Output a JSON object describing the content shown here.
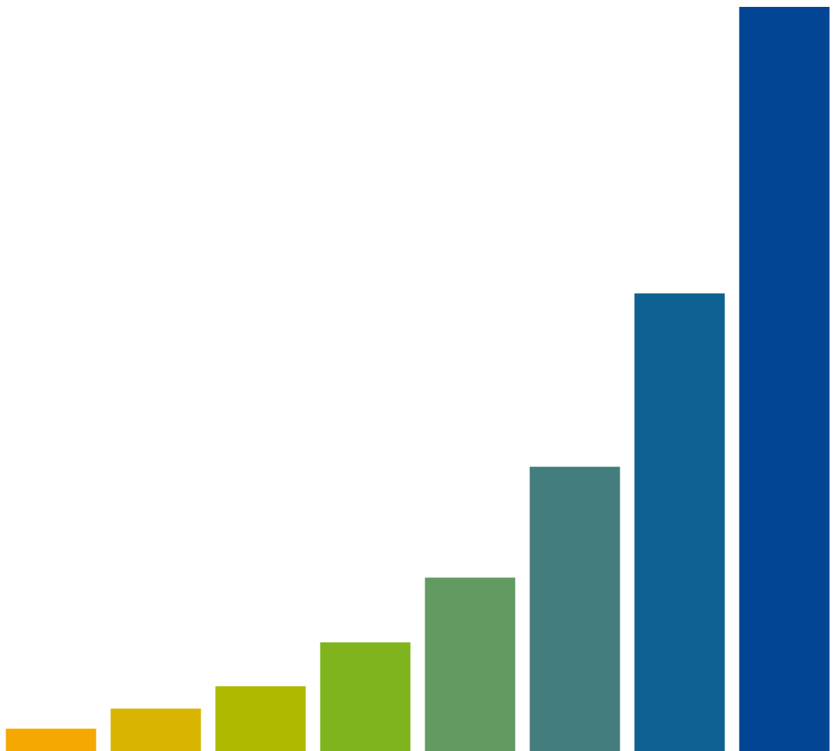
{
  "chart_data": {
    "type": "bar",
    "categories": [
      null,
      null,
      null,
      null,
      null,
      null,
      null,
      null
    ],
    "values": [
      3,
      5.7,
      8.7,
      14.6,
      23.3,
      38.2,
      61.5,
      100
    ],
    "colors": [
      "#f5a800",
      "#d8b400",
      "#aeba00",
      "#80b41e",
      "#629b62",
      "#437d7d",
      "#0d6291",
      "#024595"
    ],
    "ylim": [
      0,
      100
    ]
  }
}
